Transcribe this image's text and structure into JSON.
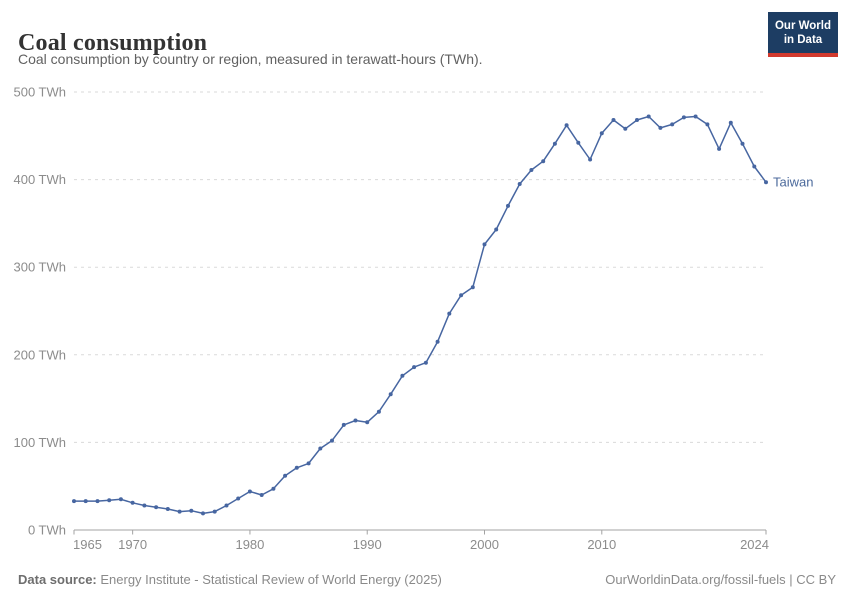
{
  "header": {
    "title": "Coal consumption",
    "subtitle": "Coal consumption by country or region, measured in terawatt-hours (TWh)."
  },
  "logo": {
    "line1": "Our World",
    "line2": "in Data"
  },
  "footer": {
    "source_label": "Data source:",
    "source_text": " Energy Institute - Statistical Review of World Energy (2025)",
    "link_text": "OurWorldinData.org/fossil-fuels | CC BY"
  },
  "colors": {
    "line": "#4766a1",
    "series_label": "#4c6a9c",
    "gridline": "#dadada",
    "axis_line": "#a3a3a3",
    "tick_label": "#8c8c8c",
    "logo_bg": "#1d3d63",
    "logo_stripe": "#d23a2e"
  },
  "chart_data": {
    "type": "line",
    "title": "Coal consumption",
    "ylabel": "TWh",
    "ytick_suffix": " TWh",
    "xlim": [
      1965,
      2024
    ],
    "ylim": [
      0,
      500
    ],
    "grid": "dashed-horizontal",
    "legend": "end-of-line-label",
    "xticks": [
      1965,
      1970,
      1980,
      1990,
      2000,
      2010,
      2024
    ],
    "yticks": [
      0,
      100,
      200,
      300,
      400,
      500
    ],
    "x": [
      1965,
      1966,
      1967,
      1968,
      1969,
      1970,
      1971,
      1972,
      1973,
      1974,
      1975,
      1976,
      1977,
      1978,
      1979,
      1980,
      1981,
      1982,
      1983,
      1984,
      1985,
      1986,
      1987,
      1988,
      1989,
      1990,
      1991,
      1992,
      1993,
      1994,
      1995,
      1996,
      1997,
      1998,
      1999,
      2000,
      2001,
      2002,
      2003,
      2004,
      2005,
      2006,
      2007,
      2008,
      2009,
      2010,
      2011,
      2012,
      2013,
      2014,
      2015,
      2016,
      2017,
      2018,
      2019,
      2020,
      2021,
      2022,
      2023,
      2024
    ],
    "series": [
      {
        "name": "Taiwan",
        "values": [
          33,
          33,
          33,
          34,
          35,
          31,
          28,
          26,
          24,
          21,
          22,
          19,
          21,
          28,
          36,
          44,
          40,
          47,
          62,
          71,
          76,
          93,
          102,
          120,
          125,
          123,
          135,
          155,
          176,
          186,
          191,
          215,
          247,
          268,
          277,
          326,
          343,
          370,
          395,
          411,
          421,
          441,
          462,
          442,
          423,
          453,
          468,
          458,
          468,
          472,
          459,
          463,
          471,
          472,
          463,
          435,
          465,
          441,
          415,
          397
        ]
      }
    ]
  }
}
